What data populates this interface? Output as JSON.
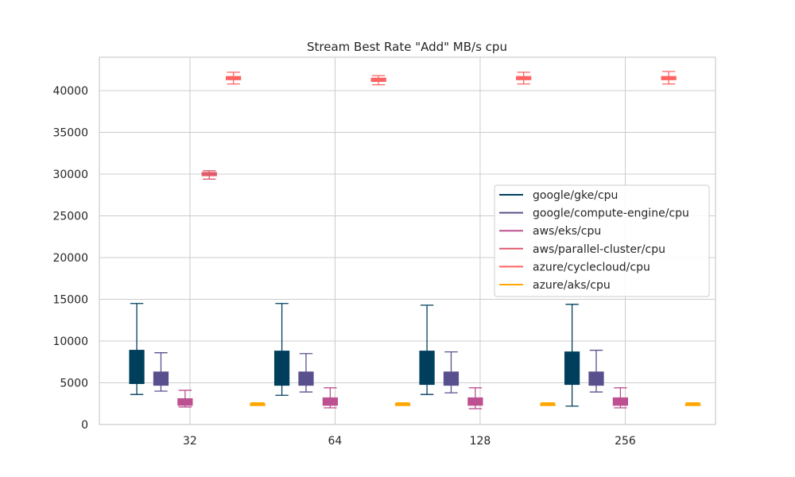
{
  "chart_data": {
    "type": "box",
    "title": "Stream Best Rate \"Add\" MB/s cpu",
    "xlabel": "",
    "ylabel": "",
    "categories": [
      "32",
      "64",
      "128",
      "256"
    ],
    "ylim": [
      0,
      44000
    ],
    "yticks": [
      0,
      5000,
      10000,
      15000,
      20000,
      25000,
      30000,
      35000,
      40000
    ],
    "grid": true,
    "legend_position": "center-right",
    "series": [
      {
        "name": "google/gke/cpu",
        "color": "#003f5c",
        "boxes": [
          {
            "category": "32",
            "min": 3600,
            "q1": 4900,
            "median": 5600,
            "q3": 8900,
            "max": 14500
          },
          {
            "category": "64",
            "min": 3500,
            "q1": 4700,
            "median": 5700,
            "q3": 8800,
            "max": 14500
          },
          {
            "category": "128",
            "min": 3600,
            "q1": 4800,
            "median": 5600,
            "q3": 8800,
            "max": 14300
          },
          {
            "category": "256",
            "min": 2200,
            "q1": 4800,
            "median": 5600,
            "q3": 8700,
            "max": 14400
          }
        ]
      },
      {
        "name": "google/compute-engine/cpu",
        "color": "#58508d",
        "boxes": [
          {
            "category": "32",
            "min": 4000,
            "q1": 4700,
            "median": 5400,
            "q3": 6300,
            "max": 8600
          },
          {
            "category": "64",
            "min": 3900,
            "q1": 4700,
            "median": 5400,
            "q3": 6300,
            "max": 8500
          },
          {
            "category": "128",
            "min": 3800,
            "q1": 4700,
            "median": 5400,
            "q3": 6300,
            "max": 8700
          },
          {
            "category": "256",
            "min": 3900,
            "q1": 4700,
            "median": 5400,
            "q3": 6300,
            "max": 8900
          }
        ]
      },
      {
        "name": "aws/eks/cpu",
        "color": "#bc5090",
        "boxes": [
          {
            "category": "32",
            "min": 2100,
            "q1": 2300,
            "median": 2600,
            "q3": 3100,
            "max": 4100
          },
          {
            "category": "64",
            "min": 2000,
            "q1": 2300,
            "median": 2600,
            "q3": 3200,
            "max": 4400
          },
          {
            "category": "128",
            "min": 1900,
            "q1": 2300,
            "median": 2600,
            "q3": 3200,
            "max": 4400
          },
          {
            "category": "256",
            "min": 2000,
            "q1": 2300,
            "median": 2600,
            "q3": 3200,
            "max": 4400
          }
        ]
      },
      {
        "name": "aws/parallel-cluster/cpu",
        "color": "#de5a6a",
        "boxes": [
          {
            "category": "32",
            "min": 29400,
            "q1": 29800,
            "median": 30000,
            "q3": 30200,
            "max": 30400
          }
        ]
      },
      {
        "name": "azure/cyclecloud/cpu",
        "color": "#ff6361",
        "boxes": [
          {
            "category": "32",
            "min": 40800,
            "q1": 41300,
            "median": 41500,
            "q3": 41700,
            "max": 42200
          },
          {
            "category": "64",
            "min": 40700,
            "q1": 41100,
            "median": 41300,
            "q3": 41500,
            "max": 41800
          },
          {
            "category": "128",
            "min": 40800,
            "q1": 41300,
            "median": 41500,
            "q3": 41700,
            "max": 42200
          },
          {
            "category": "256",
            "min": 40800,
            "q1": 41300,
            "median": 41500,
            "q3": 41700,
            "max": 42300
          }
        ]
      },
      {
        "name": "azure/aks/cpu",
        "color": "#ffa600",
        "boxes": [
          {
            "category": "32",
            "min": 2400,
            "q1": 2450,
            "median": 2500,
            "q3": 2550,
            "max": 2600
          },
          {
            "category": "64",
            "min": 2400,
            "q1": 2450,
            "median": 2500,
            "q3": 2550,
            "max": 2600
          },
          {
            "category": "128",
            "min": 2400,
            "q1": 2450,
            "median": 2500,
            "q3": 2550,
            "max": 2600
          },
          {
            "category": "256",
            "min": 2400,
            "q1": 2450,
            "median": 2500,
            "q3": 2550,
            "max": 2600
          }
        ]
      }
    ]
  }
}
